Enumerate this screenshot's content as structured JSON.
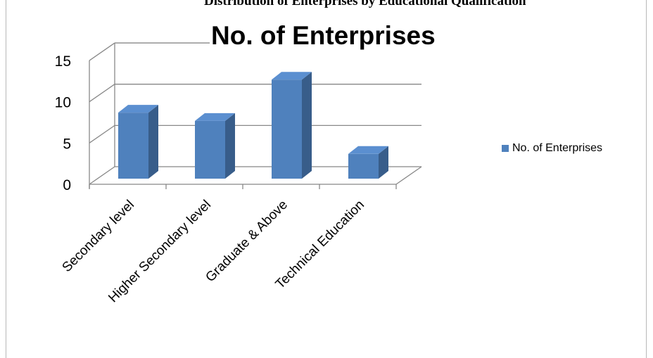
{
  "document": {
    "heading": "Distribution of Enterprises by Educational Qualification"
  },
  "chart_data": {
    "type": "bar",
    "title": "No. of Enterprises",
    "categories": [
      "Secondary level",
      "Higher Secondary level",
      "Graduate & Above",
      "Technical Education"
    ],
    "series": [
      {
        "name": "No. of Enterprises",
        "values": [
          8,
          7,
          12,
          3
        ],
        "color": "#4f81bd"
      }
    ],
    "ylim": [
      0,
      15
    ],
    "yticks": [
      0,
      5,
      10,
      15
    ],
    "grid": true,
    "legend_position": "right",
    "style": "3d-column"
  }
}
